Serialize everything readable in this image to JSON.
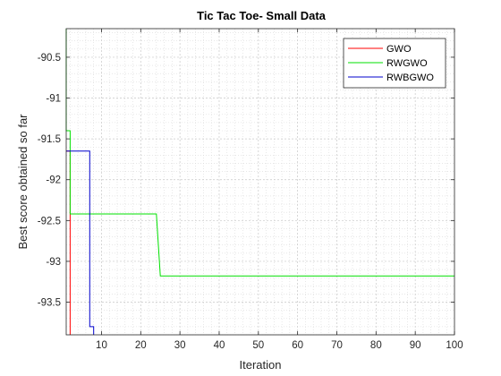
{
  "chart_data": {
    "type": "line",
    "title": "Tic Tac Toe- Small Data",
    "xlabel": "Iteration",
    "ylabel": "Best score obtained so far",
    "xlim": [
      1,
      100
    ],
    "ylim": [
      -93.9,
      -90.15
    ],
    "xticks": [
      10,
      20,
      30,
      40,
      50,
      60,
      70,
      80,
      90,
      100
    ],
    "yticks": [
      -90.5,
      -91,
      -91.5,
      -92,
      -92.5,
      -93,
      -93.5
    ],
    "xtick_labels": [
      "10",
      "20",
      "30",
      "40",
      "50",
      "60",
      "70",
      "80",
      "90",
      "100"
    ],
    "ytick_labels": [
      "-90.5",
      "-91",
      "-91.5",
      "-92",
      "-92.5",
      "-93",
      "-93.5"
    ],
    "grid": true,
    "minor_grid": true,
    "legend_position": "top-right",
    "series": [
      {
        "name": "GWO",
        "color": "#ff0000",
        "points": [
          [
            1,
            -91.65
          ],
          [
            2,
            -91.65
          ],
          [
            2,
            -92.42
          ],
          [
            2,
            -92.42
          ],
          [
            2,
            -93.9
          ]
        ]
      },
      {
        "name": "RWGWO",
        "color": "#00e000",
        "points": [
          [
            1,
            -90.15
          ],
          [
            1,
            -91.4
          ],
          [
            2,
            -91.4
          ],
          [
            2,
            -92.42
          ],
          [
            24,
            -92.42
          ],
          [
            25,
            -93.18
          ],
          [
            100,
            -93.18
          ]
        ]
      },
      {
        "name": "RWBGWO",
        "color": "#0000cc",
        "points": [
          [
            1,
            -91.65
          ],
          [
            7,
            -91.65
          ],
          [
            7,
            -93.8
          ],
          [
            8,
            -93.8
          ],
          [
            8,
            -93.9
          ]
        ]
      }
    ]
  }
}
